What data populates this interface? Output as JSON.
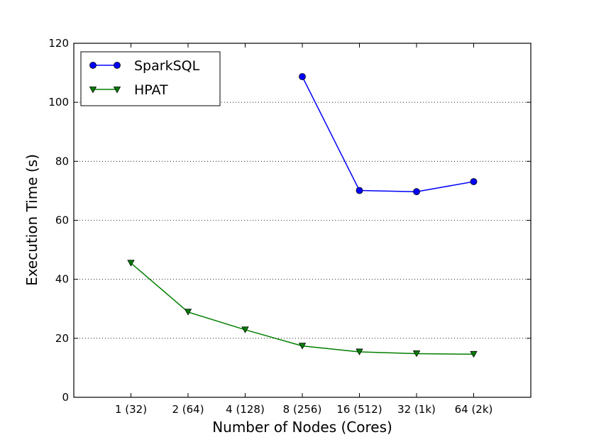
{
  "chart_data": {
    "type": "line",
    "categories": [
      "1 (32)",
      "2 (64)",
      "4 (128)",
      "8 (256)",
      "16 (512)",
      "32 (1k)",
      "64 (2k)"
    ],
    "series": [
      {
        "name": "SparkSQL",
        "values": [
          null,
          null,
          null,
          108.7,
          70.1,
          69.7,
          73.1
        ],
        "color": "#0000ff",
        "marker": "circle"
      },
      {
        "name": "HPAT",
        "values": [
          45.5,
          28.9,
          22.9,
          17.4,
          15.4,
          14.8,
          14.6
        ],
        "color": "#007f00",
        "marker": "triangle-down"
      }
    ],
    "title": "",
    "xlabel": "Number of Nodes (Cores)",
    "ylabel": "Execution Time (s)",
    "ylim": [
      0,
      120
    ],
    "yticks": [
      "0",
      "20",
      "40",
      "60",
      "80",
      "100",
      "120"
    ],
    "grid": "horizontal dotted",
    "legend_position": "top-left"
  }
}
